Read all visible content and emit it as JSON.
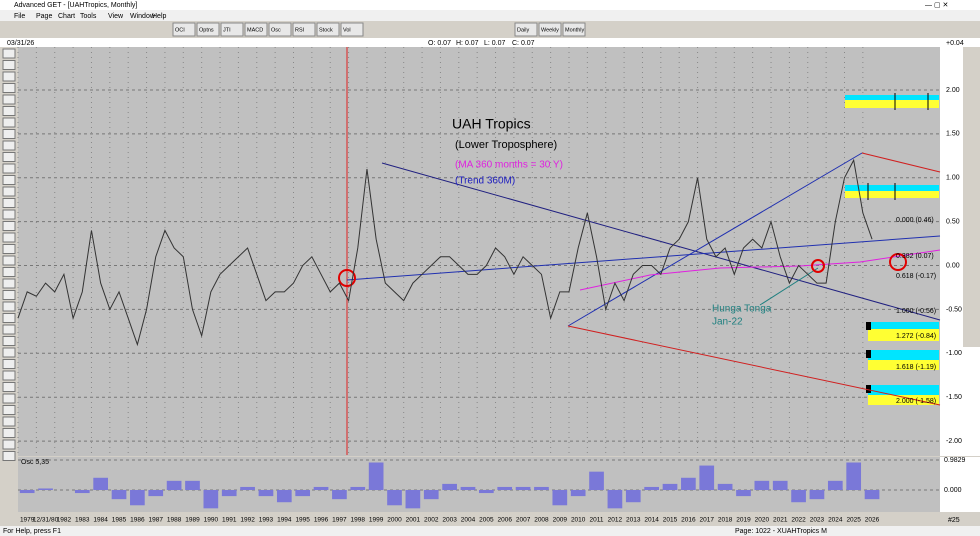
{
  "window": {
    "title": "Advanced GET - [UAHTropics, Monthly]"
  },
  "menu": [
    "File",
    "Page",
    "Chart",
    "Tools",
    "View",
    "Window",
    "Help"
  ],
  "toolbar": [
    "OCI",
    "Optns",
    "JTI",
    "MACD",
    "Osc",
    "RSI",
    "Stock",
    "Vol",
    "Daily",
    "Weekly",
    "Monthly"
  ],
  "header": {
    "date": "03/31/26",
    "open": "O: 0.07",
    "high": "H: 0.07",
    "low": "L: 0.07",
    "close": "C: 0.07",
    "change": "+0.04"
  },
  "chart": {
    "ylim": [
      -2.17,
      2.49
    ],
    "yticks": [
      {
        "value": 2,
        "label": "2.00"
      },
      {
        "value": 1.5,
        "label": "1.50"
      },
      {
        "value": 1,
        "label": "1.00"
      },
      {
        "value": 0.5,
        "label": "0.50"
      },
      {
        "value": 0,
        "label": "0.00"
      },
      {
        "value": -0.5,
        "label": "-0.50"
      },
      {
        "value": -1,
        "label": "-1.00"
      },
      {
        "value": -1.5,
        "label": "-1.50"
      },
      {
        "value": -2,
        "label": "-2.00"
      }
    ],
    "xlim": [
      1979,
      2029.2
    ],
    "x": [
      1979,
      1979.5,
      1980,
      1980.5,
      1981,
      1981.5,
      1982,
      1982.5,
      1983,
      1983.5,
      1984,
      1984.5,
      1985,
      1985.5,
      1986,
      1986.5,
      1987,
      1987.5,
      1988,
      1988.5,
      1989,
      1989.5,
      1990,
      1990.5,
      1991,
      1991.5,
      1992,
      1992.5,
      1993,
      1993.5,
      1994,
      1994.5,
      1995,
      1995.5,
      1996,
      1996.5,
      1997,
      1997.5,
      1998,
      1998.5,
      1999,
      1999.5,
      2000,
      2000.5,
      2001,
      2001.5,
      2002,
      2002.5,
      2003,
      2003.5,
      2004,
      2004.5,
      2005,
      2005.5,
      2006,
      2006.5,
      2007,
      2007.5,
      2008,
      2008.5,
      2009,
      2009.5,
      2010,
      2010.5,
      2011,
      2011.5,
      2012,
      2012.5,
      2013,
      2013.5,
      2014,
      2014.5,
      2015,
      2015.5,
      2016,
      2016.5,
      2017,
      2017.5,
      2018,
      2018.5,
      2019,
      2019.5,
      2020,
      2020.5,
      2021,
      2021.5,
      2022,
      2022.5,
      2023,
      2023.5,
      2024,
      2024.5,
      2025,
      2025.5
    ],
    "values": [
      -0.6,
      -0.3,
      -0.35,
      -0.2,
      -0.3,
      -0.1,
      -0.6,
      -0.3,
      0.4,
      -0.2,
      -0.5,
      -0.3,
      -0.6,
      -0.9,
      -0.5,
      0.1,
      0.4,
      0.2,
      0.1,
      -0.5,
      -0.8,
      -0.3,
      -0.1,
      0,
      0.1,
      0.2,
      -0.1,
      -0.4,
      -0.3,
      -0.3,
      -0.2,
      0,
      0.1,
      -0.1,
      -0.3,
      -0.2,
      -0.4,
      0.2,
      1.1,
      0.3,
      -0.2,
      -0.3,
      -0.4,
      -0.2,
      -0.1,
      0,
      0.1,
      0.1,
      0,
      -0.1,
      -0.1,
      0,
      0.2,
      0.1,
      -0.1,
      0.1,
      0,
      -0.1,
      -0.6,
      -0.3,
      -0.3,
      0.2,
      0.6,
      0.1,
      -0.5,
      -0.2,
      -0.4,
      -0.1,
      0,
      0,
      -0.1,
      0.2,
      0.3,
      0.5,
      1,
      0.3,
      0.1,
      0.2,
      -0.1,
      0.2,
      0.3,
      0.2,
      0.5,
      0.1,
      -0.2,
      0,
      -0.1,
      -0.2,
      -0.2,
      0.5,
      1,
      1.2,
      0.6,
      0.3
    ],
    "color": "#333333",
    "annotations": {
      "title": "UAH Tropics",
      "subtitle": "(Lower Troposphere)",
      "ma": "(MA 360 months = 30 Y)",
      "trend": "(Trend 360M)",
      "event": "Hunga Tonga",
      "event_date": "Jan-22"
    },
    "fib_labels": [
      "0.000 (0.46)",
      "0.382 (0.07)",
      "0.618 (-0.17)",
      "1.000 (-0.56)",
      "1.272 (-0.84)",
      "1.618 (-1.19)",
      "2.000 (-1.58)"
    ]
  },
  "osc": {
    "title": "Osc 5,35",
    "ylim": [
      -0.72,
      1.08
    ],
    "yticks": [
      0.9829,
      {
        "value": 0,
        "label": "0.000"
      }
    ],
    "x": [
      1979,
      1980,
      1981,
      1982,
      1983,
      1984,
      1985,
      1986,
      1987,
      1988,
      1989,
      1990,
      1991,
      1992,
      1993,
      1994,
      1995,
      1996,
      1997,
      1998,
      1999,
      2000,
      2001,
      2002,
      2003,
      2004,
      2005,
      2006,
      2007,
      2008,
      2009,
      2010,
      2011,
      2012,
      2013,
      2014,
      2015,
      2016,
      2017,
      2018,
      2019,
      2020,
      2021,
      2022,
      2023,
      2024,
      2025
    ],
    "values": [
      -0.1,
      0.05,
      0,
      -0.1,
      0.4,
      -0.3,
      -0.5,
      -0.2,
      0.3,
      0.3,
      -0.6,
      -0.2,
      0.1,
      -0.2,
      -0.4,
      -0.2,
      0.1,
      -0.3,
      0.1,
      0.9,
      -0.5,
      -0.6,
      -0.3,
      0.2,
      0.1,
      -0.1,
      0.1,
      0.1,
      0.1,
      -0.5,
      -0.2,
      0.6,
      -0.6,
      -0.4,
      0.1,
      0.2,
      0.4,
      0.8,
      0.2,
      -0.2,
      0.3,
      0.3,
      -0.4,
      -0.3,
      0.3,
      0.9,
      -0.3
    ],
    "color": "#7a78d8"
  },
  "xaxis": {
    "labels": [
      "1979",
      "12/31/80",
      "1982",
      "1983",
      "1984",
      "1985",
      "1986",
      "1987",
      "1988",
      "1989",
      "1990",
      "1991",
      "1992",
      "1993",
      "1994",
      "1995",
      "1996",
      "1997",
      "1998",
      "1999",
      "2000",
      "2001",
      "2002",
      "2003",
      "2004",
      "2005",
      "2006",
      "2007",
      "2008",
      "2009",
      "2010",
      "2011",
      "2012",
      "2013",
      "2014",
      "2015",
      "2016",
      "2017",
      "2018",
      "2019",
      "2020",
      "2021",
      "2022",
      "2023",
      "2024",
      "2025",
      "2026"
    ]
  },
  "footer": "#25",
  "status": {
    "help": "For Help, press F1",
    "page": "Page: 1022 - XUAHTropics M"
  }
}
